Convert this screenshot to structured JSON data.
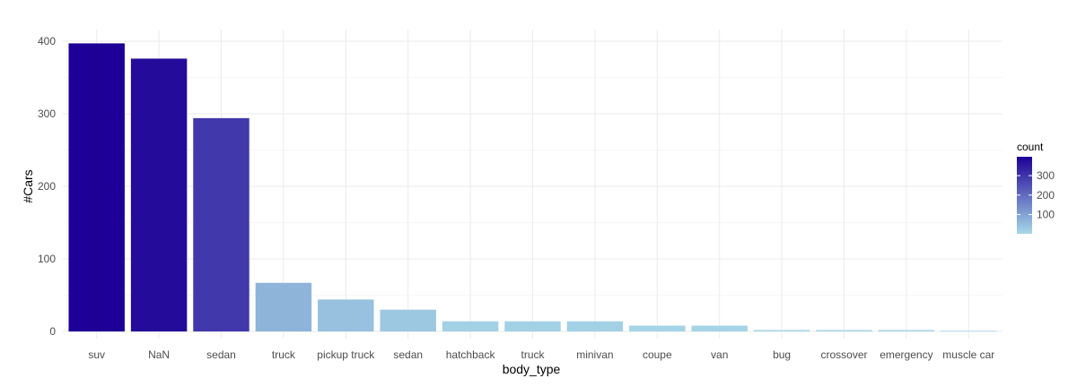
{
  "chart_data": {
    "type": "bar",
    "title": "",
    "xlabel": "body_type",
    "ylabel": "#Cars",
    "categories": [
      "suv",
      "NaN",
      "sedan",
      "truck",
      "pickup truck",
      "sedan",
      "hatchback",
      "truck",
      "minivan",
      "coupe",
      "van",
      "bug",
      "crossover",
      "emergency",
      "muscle car"
    ],
    "values": [
      397,
      376,
      294,
      67,
      44,
      30,
      14,
      14,
      14,
      8,
      8,
      2,
      2,
      2,
      1
    ],
    "ylim": [
      0,
      415
    ],
    "yticks": [
      0,
      100,
      200,
      300,
      400
    ],
    "grid": true,
    "fill_scale": {
      "name": "count",
      "low_color": "#a6d8e8",
      "high_color": "#1e0096",
      "range": [
        1,
        397
      ],
      "ticks": [
        100,
        200,
        300
      ]
    },
    "legend_position": "right"
  }
}
